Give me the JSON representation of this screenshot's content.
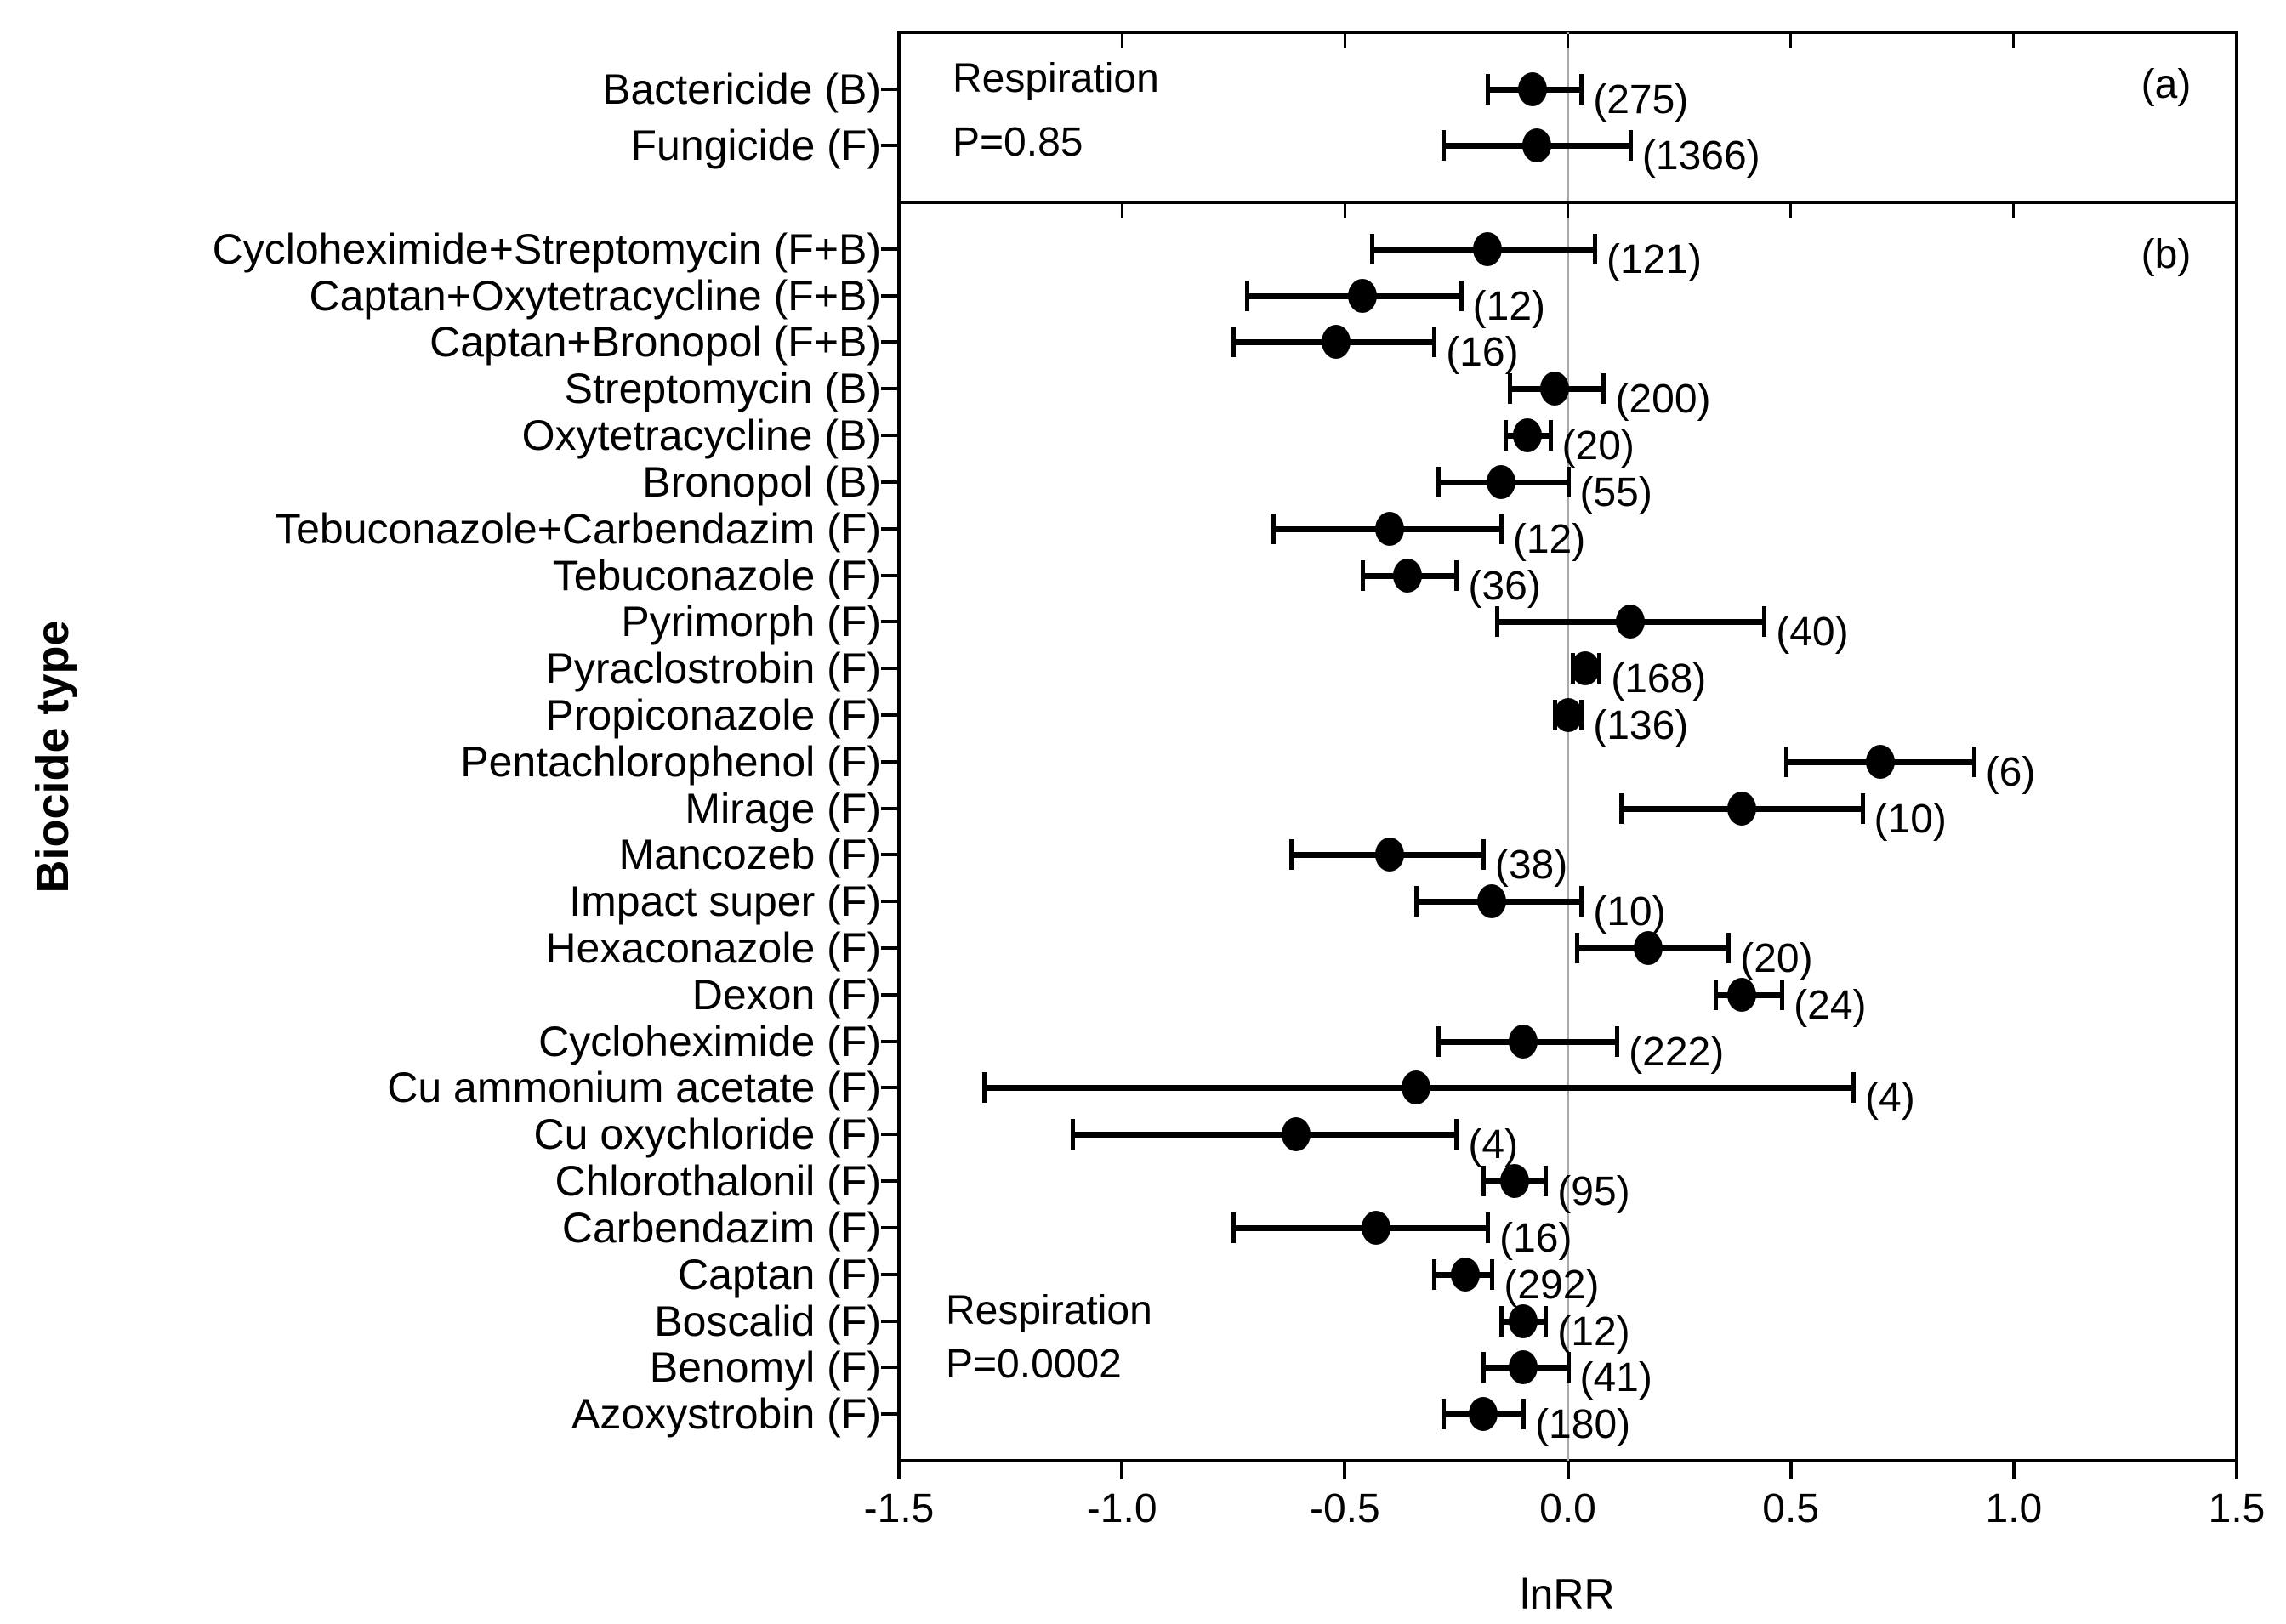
{
  "chart_data": {
    "type": "scatter",
    "subtype": "forest_plot",
    "title": "",
    "xlabel": "lnRR",
    "ylabel": "Biocide type",
    "xlim": [
      -1.5,
      1.5
    ],
    "x_tick_values": [
      -1.5,
      -1.0,
      -0.5,
      0.0,
      0.5,
      1.0,
      1.5
    ],
    "x_tick_labels": [
      "-1.5",
      "-1.0",
      "-0.5",
      "0.0",
      "0.5",
      "1.0",
      "1.5"
    ],
    "inner_tick_values": [
      -1.0,
      -0.5,
      0.0,
      0.5,
      1.0
    ],
    "zero_line_x": 0.0,
    "grid": false,
    "legend": "none",
    "point_color": "#000000",
    "error_bar_color": "#000000",
    "zero_line_color": "#a9a9a9",
    "border_color": "#000000",
    "background_color": "#ffffff",
    "panels": [
      {
        "panel_label": "(a)",
        "annotation_line1": "Respiration",
        "annotation_line2": "P=0.85",
        "rows": [
          {
            "category": "Bactericide (B)",
            "n": 275,
            "est": -0.08,
            "lo": -0.18,
            "hi": 0.03
          },
          {
            "category": "Fungicide (F)",
            "n": 1366,
            "est": -0.07,
            "lo": -0.28,
            "hi": 0.14
          }
        ]
      },
      {
        "panel_label": "(b)",
        "annotation_line1": "Respiration",
        "annotation_line2": "P=0.0002",
        "rows": [
          {
            "category": "Cycloheximide+Streptomycin (F+B)",
            "n": 121,
            "est": -0.18,
            "lo": -0.44,
            "hi": 0.06
          },
          {
            "category": "Captan+Oxytetracycline (F+B)",
            "n": 12,
            "est": -0.46,
            "lo": -0.72,
            "hi": -0.24
          },
          {
            "category": "Captan+Bronopol (F+B)",
            "n": 16,
            "est": -0.52,
            "lo": -0.75,
            "hi": -0.3
          },
          {
            "category": "Streptomycin (B)",
            "n": 200,
            "est": -0.03,
            "lo": -0.13,
            "hi": 0.08
          },
          {
            "category": "Oxytetracycline (B)",
            "n": 20,
            "est": -0.09,
            "lo": -0.14,
            "hi": -0.04
          },
          {
            "category": "Bronopol (B)",
            "n": 55,
            "est": -0.15,
            "lo": -0.29,
            "hi": 0.0
          },
          {
            "category": "Tebuconazole+Carbendazim (F)",
            "n": 12,
            "est": -0.4,
            "lo": -0.66,
            "hi": -0.15
          },
          {
            "category": "Tebuconazole (F)",
            "n": 36,
            "est": -0.36,
            "lo": -0.46,
            "hi": -0.25
          },
          {
            "category": "Pyrimorph (F)",
            "n": 40,
            "est": 0.14,
            "lo": -0.16,
            "hi": 0.44
          },
          {
            "category": "Pyraclostrobin (F)",
            "n": 168,
            "est": 0.04,
            "lo": 0.01,
            "hi": 0.07
          },
          {
            "category": "Propiconazole (F)",
            "n": 136,
            "est": 0.0,
            "lo": -0.03,
            "hi": 0.03
          },
          {
            "category": "Pentachlorophenol (F)",
            "n": 6,
            "est": 0.7,
            "lo": 0.49,
            "hi": 0.91
          },
          {
            "category": "Mirage (F)",
            "n": 10,
            "est": 0.39,
            "lo": 0.12,
            "hi": 0.66
          },
          {
            "category": "Mancozeb (F)",
            "n": 38,
            "est": -0.4,
            "lo": -0.62,
            "hi": -0.19
          },
          {
            "category": "Impact super (F)",
            "n": 10,
            "est": -0.17,
            "lo": -0.34,
            "hi": 0.03
          },
          {
            "category": "Hexaconazole (F)",
            "n": 20,
            "est": 0.18,
            "lo": 0.02,
            "hi": 0.36
          },
          {
            "category": "Dexon (F)",
            "n": 24,
            "est": 0.39,
            "lo": 0.33,
            "hi": 0.48
          },
          {
            "category": "Cycloheximide (F)",
            "n": 222,
            "est": -0.1,
            "lo": -0.29,
            "hi": 0.11
          },
          {
            "category": "Cu ammonium acetate (F)",
            "n": 4,
            "est": -0.34,
            "lo": -1.31,
            "hi": 0.64
          },
          {
            "category": "Cu oxychloride (F)",
            "n": 4,
            "est": -0.61,
            "lo": -1.11,
            "hi": -0.25
          },
          {
            "category": "Chlorothalonil (F)",
            "n": 95,
            "est": -0.12,
            "lo": -0.19,
            "hi": -0.05
          },
          {
            "category": "Carbendazim (F)",
            "n": 16,
            "est": -0.43,
            "lo": -0.75,
            "hi": -0.18
          },
          {
            "category": "Captan (F)",
            "n": 292,
            "est": -0.23,
            "lo": -0.3,
            "hi": -0.17
          },
          {
            "category": "Boscalid (F)",
            "n": 12,
            "est": -0.1,
            "lo": -0.15,
            "hi": -0.05
          },
          {
            "category": "Benomyl (F)",
            "n": 41,
            "est": -0.1,
            "lo": -0.19,
            "hi": 0.0
          },
          {
            "category": "Azoxystrobin (F)",
            "n": 180,
            "est": -0.19,
            "lo": -0.28,
            "hi": -0.1
          }
        ]
      }
    ]
  }
}
